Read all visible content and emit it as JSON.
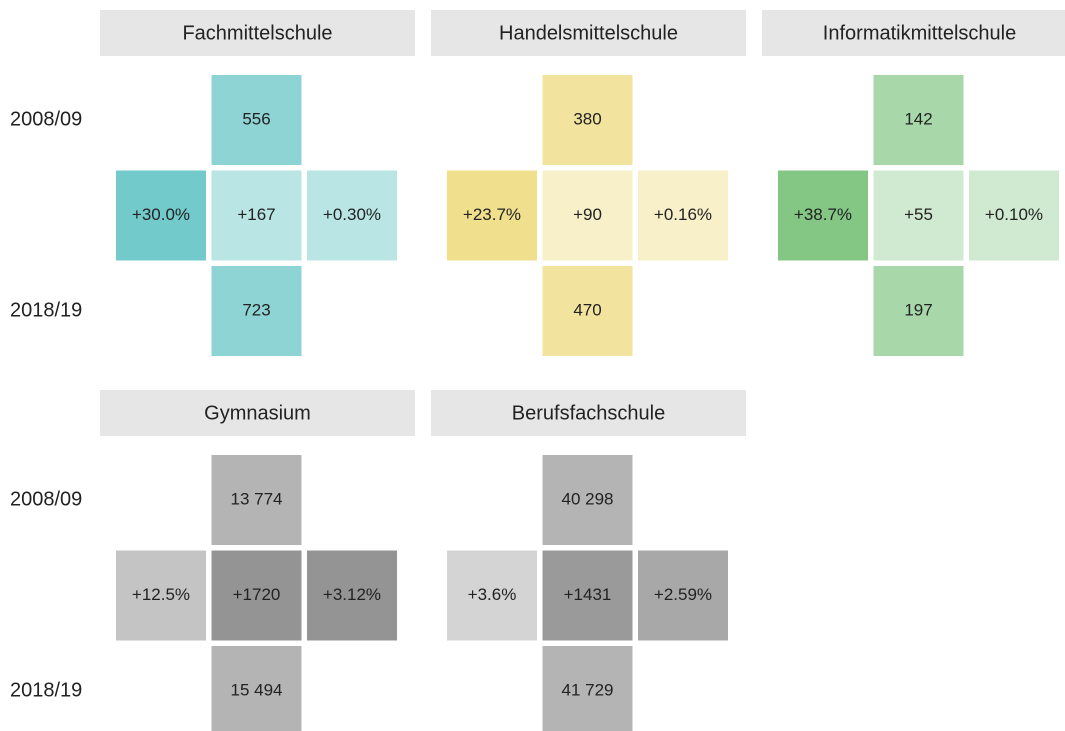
{
  "rows": [
    {
      "labels": [
        "2008/09",
        "2018/19"
      ],
      "panels": [
        {
          "title": "Fachmittelschule",
          "top": "556",
          "left": "+30.0%",
          "center": "+167",
          "right": "+0.30%",
          "bottom": "723",
          "colors": {
            "top": "#8fd4d4",
            "left": "#72caca",
            "center": "#b9e5e5",
            "right": "#b9e5e5",
            "bottom": "#8fd4d4"
          }
        },
        {
          "title": "Handelsmittelschule",
          "top": "380",
          "left": "+23.7%",
          "center": "+90",
          "right": "+0.16%",
          "bottom": "470",
          "colors": {
            "top": "#f2e39e",
            "left": "#f0e08e",
            "center": "#f7f0c8",
            "right": "#f7f0c8",
            "bottom": "#f2e39e"
          }
        },
        {
          "title": "Informatikmittelschule",
          "top": "142",
          "left": "+38.7%",
          "center": "+55",
          "right": "+0.10%",
          "bottom": "197",
          "colors": {
            "top": "#a8d8aa",
            "left": "#84c784",
            "center": "#cfead0",
            "right": "#cfead0",
            "bottom": "#a8d8aa"
          }
        }
      ]
    },
    {
      "labels": [
        "2008/09",
        "2018/19"
      ],
      "panels": [
        {
          "title": "Gymnasium",
          "top": "13 774",
          "left": "+12.5%",
          "center": "+1720",
          "right": "+3.12%",
          "bottom": "15 494",
          "colors": {
            "top": "#b4b4b4",
            "left": "#c4c4c4",
            "center": "#949494",
            "right": "#949494",
            "bottom": "#b4b4b4"
          }
        },
        {
          "title": "Berufsfachschule",
          "top": "40 298",
          "left": "+3.6%",
          "center": "+1431",
          "right": "+2.59%",
          "bottom": "41 729",
          "colors": {
            "top": "#b4b4b4",
            "left": "#d4d4d4",
            "center": "#9a9a9a",
            "right": "#a8a8a8",
            "bottom": "#b4b4b4"
          }
        }
      ]
    }
  ]
}
